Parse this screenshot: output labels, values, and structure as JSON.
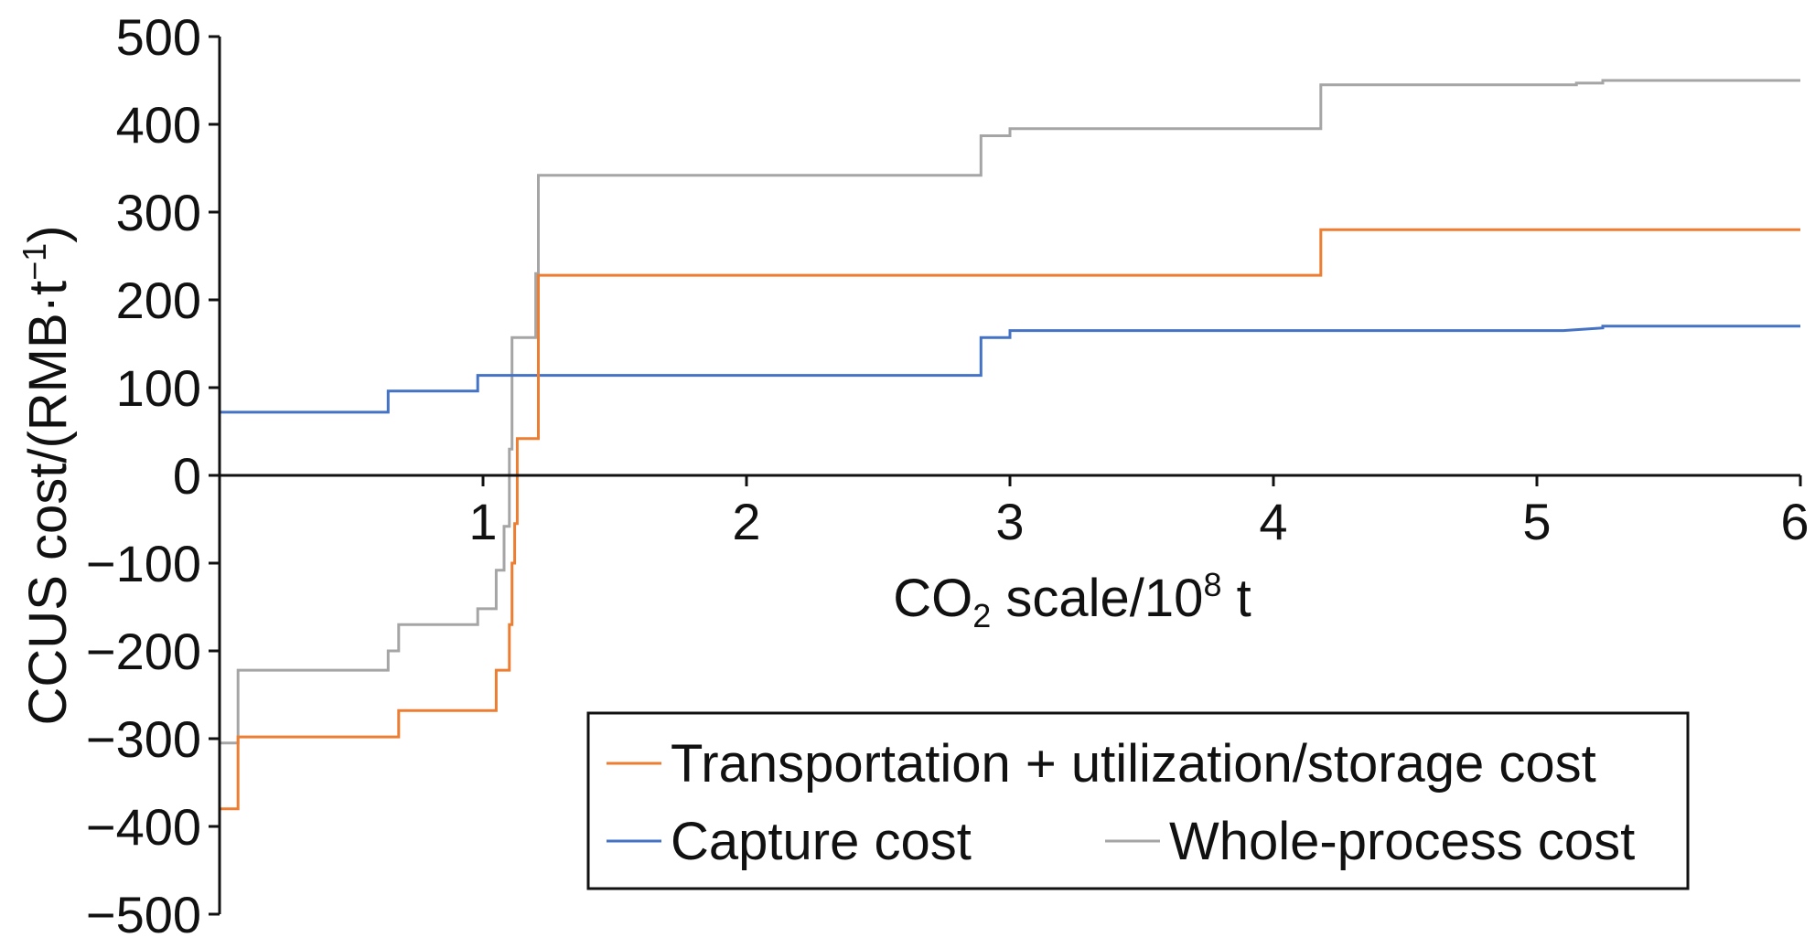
{
  "chart_data": {
    "type": "line",
    "step": true,
    "xlabel": {
      "main": "CO",
      "sub": "2",
      "mid": " scale/10",
      "sup": "8",
      "end": " t"
    },
    "ylabel": {
      "main": "CCUS cost/(RMB·t",
      "sup": "−1",
      "end": ")"
    },
    "xlim": [
      0,
      6
    ],
    "ylim": [
      -500,
      500
    ],
    "xticks": [
      1,
      2,
      3,
      4,
      5,
      6
    ],
    "xtick_labels": [
      "1",
      "2",
      "3",
      "4",
      "5",
      "6"
    ],
    "yticks": [
      500,
      400,
      300,
      200,
      100,
      0,
      -100,
      -200,
      -300,
      -400,
      -500
    ],
    "ytick_labels": [
      "500",
      "400",
      "300",
      "200",
      "100",
      "0",
      "−100",
      "−200",
      "−300",
      "−400",
      "−500"
    ],
    "grid": false,
    "legend_position": "bottom-right",
    "series": [
      {
        "name": "Transportation + utilization/storage cost",
        "color": "#ED7D31",
        "x": [
          0,
          0.07,
          0.07,
          0.68,
          0.68,
          1.05,
          1.05,
          1.1,
          1.1,
          1.11,
          1.11,
          1.12,
          1.12,
          1.13,
          1.13,
          1.21,
          1.21,
          2.0,
          3.0,
          4.18,
          4.18,
          5.0,
          6.0
        ],
        "y": [
          -380,
          -380,
          -298,
          -298,
          -268,
          -268,
          -222,
          -222,
          -170,
          -170,
          -100,
          -100,
          -55,
          -55,
          42,
          42,
          228,
          228,
          228,
          228,
          280,
          280,
          280
        ]
      },
      {
        "name": "Capture cost",
        "color": "#4472C4",
        "x": [
          0,
          0.64,
          0.64,
          0.98,
          0.98,
          1.13,
          1.13,
          1.8,
          2.89,
          2.89,
          3.0,
          3.0,
          4.0,
          5.1,
          5.25,
          5.25,
          6.0
        ],
        "y": [
          72,
          72,
          96,
          96,
          114,
          114,
          114,
          114,
          114,
          157,
          157,
          165,
          165,
          165,
          168,
          170,
          170
        ]
      },
      {
        "name": "Whole-process cost",
        "color": "#A5A5A5",
        "x": [
          0,
          0.07,
          0.07,
          0.64,
          0.64,
          0.68,
          0.68,
          0.98,
          0.98,
          1.05,
          1.05,
          1.08,
          1.08,
          1.1,
          1.1,
          1.11,
          1.11,
          1.15,
          1.15,
          1.2,
          1.2,
          1.21,
          1.21,
          2.89,
          2.89,
          3.0,
          3.0,
          4.18,
          4.18,
          5.15,
          5.15,
          5.25,
          5.25,
          6.0
        ],
        "y": [
          -305,
          -305,
          -222,
          -222,
          -200,
          -200,
          -170,
          -170,
          -152,
          -152,
          -108,
          -108,
          -58,
          -58,
          30,
          30,
          157,
          157,
          157,
          157,
          230,
          230,
          342,
          342,
          387,
          387,
          395,
          395,
          445,
          445,
          447,
          447,
          450,
          450
        ]
      }
    ]
  }
}
